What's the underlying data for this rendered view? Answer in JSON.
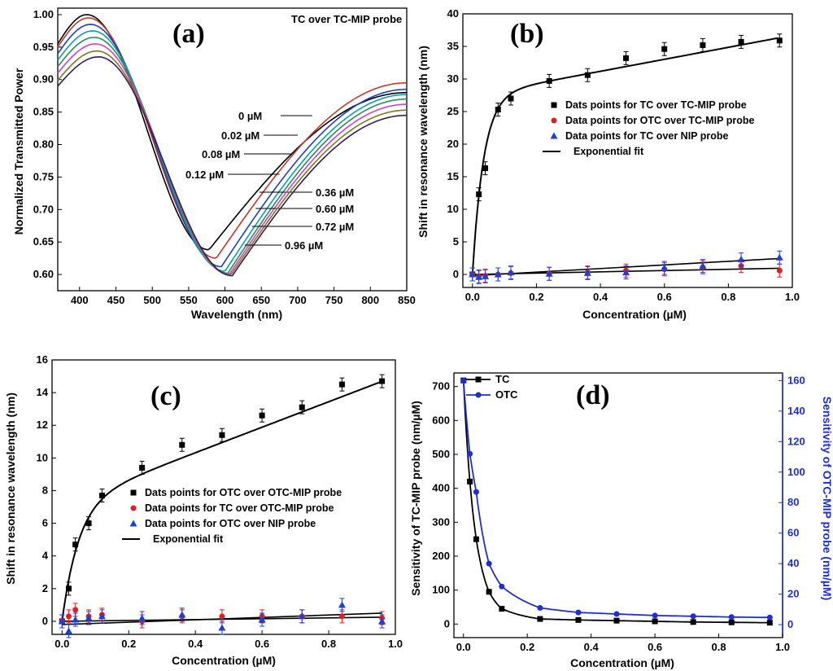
{
  "chart_data": [
    {
      "panel": "(a)",
      "type": "line",
      "title": "TC over TC-MIP probe",
      "xlabel": "Wavelength (nm)",
      "ylabel": "Normalized Transmitted Power",
      "xlim": [
        370,
        850
      ],
      "ylim": [
        0.575,
        1.01
      ],
      "xticks": [
        "400",
        "450",
        "500",
        "550",
        "600",
        "650",
        "700",
        "750",
        "800",
        "850"
      ],
      "yticks": [
        "0.60",
        "0.65",
        "0.70",
        "0.75",
        "0.80",
        "0.85",
        "0.90",
        "0.95",
        "1.00"
      ],
      "series": [
        {
          "name": "0 µM",
          "color": "#000000",
          "peak_x": 410,
          "peak_y": 1.0,
          "dip_x": 578,
          "dip_y": 0.638,
          "end_y": 0.88,
          "label_at_x": 720
        },
        {
          "name": "0.02 µM",
          "color": "#c0392b",
          "peak_x": 412,
          "peak_y": 0.995,
          "dip_x": 588,
          "dip_y": 0.625,
          "end_y": 0.895,
          "label_at_x": 700
        },
        {
          "name": "0.08 µM",
          "color": "#1f3fbf",
          "peak_x": 415,
          "peak_y": 0.985,
          "dip_x": 595,
          "dip_y": 0.612,
          "end_y": 0.885,
          "label_at_x": 690
        },
        {
          "name": "0.12 µM",
          "color": "#0aa0a8",
          "peak_x": 418,
          "peak_y": 0.975,
          "dip_x": 600,
          "dip_y": 0.605,
          "end_y": 0.877,
          "label_at_x": 675
        },
        {
          "name": "0.36 µM",
          "color": "#2e8b57",
          "peak_x": 420,
          "peak_y": 0.965,
          "dip_x": 604,
          "dip_y": 0.602,
          "end_y": 0.87,
          "label_at_x": 665
        },
        {
          "name": "0.60 µM",
          "color": "#d042c8",
          "peak_x": 422,
          "peak_y": 0.955,
          "dip_x": 606,
          "dip_y": 0.6,
          "end_y": 0.862,
          "label_at_x": 660
        },
        {
          "name": "0.72 µM",
          "color": "#7b7b20",
          "peak_x": 424,
          "peak_y": 0.944,
          "dip_x": 608,
          "dip_y": 0.599,
          "end_y": 0.853,
          "label_at_x": 655
        },
        {
          "name": "0.96 µM",
          "color": "#3a1a5c",
          "peak_x": 426,
          "peak_y": 0.935,
          "dip_x": 610,
          "dip_y": 0.598,
          "end_y": 0.845,
          "label_at_x": 645
        }
      ],
      "legend_labels": [
        "0 µM",
        "0.02 µM",
        "0.08 µM",
        "0.12 µM",
        "0.36 µM",
        "0.60 µM",
        "0.72 µM",
        "0.96 µM"
      ]
    },
    {
      "panel": "(b)",
      "type": "scatter",
      "xlabel": "Concentration (µM)",
      "ylabel": "Shift in resonance wavelength (nm)",
      "xlim": [
        -0.03,
        1.0
      ],
      "ylim": [
        -2,
        40
      ],
      "xticks": [
        "0.0",
        "0.2",
        "0.4",
        "0.6",
        "0.8",
        "1.0"
      ],
      "yticks": [
        "0",
        "5",
        "10",
        "15",
        "20",
        "25",
        "30",
        "35",
        "40"
      ],
      "x": [
        0,
        0.02,
        0.04,
        0.08,
        0.12,
        0.24,
        0.36,
        0.48,
        0.6,
        0.72,
        0.84,
        0.96
      ],
      "series": [
        {
          "name": "Dats points for TC over TC-MIP probe",
          "marker": "square",
          "color": "#000000",
          "values": [
            0,
            12.3,
            16.3,
            25.3,
            27.0,
            29.7,
            30.6,
            33.2,
            34.6,
            35.2,
            35.7,
            35.9
          ]
        },
        {
          "name": "Data points for OTC over TC-MIP probe",
          "marker": "circle",
          "color": "#e02020",
          "values": [
            0,
            -0.3,
            -0.2,
            0,
            0.2,
            0.1,
            0.3,
            0.6,
            0.8,
            1.1,
            1.3,
            0.6
          ]
        },
        {
          "name": "Data points for TC over NIP probe",
          "marker": "triangle",
          "color": "#1f3fd6",
          "values": [
            0,
            -0.4,
            -0.3,
            0,
            0.3,
            0.1,
            0.2,
            0.3,
            1.0,
            1.3,
            2.3,
            2.6
          ]
        }
      ],
      "fit_label": "Exponential fit"
    },
    {
      "panel": "(c)",
      "type": "scatter",
      "xlabel": "Concentration (µM)",
      "ylabel": "Shift in resonance wavelength (nm)",
      "xlim": [
        -0.03,
        1.0
      ],
      "ylim": [
        -0.8,
        16
      ],
      "xticks": [
        "0.0",
        "0.2",
        "0.4",
        "0.6",
        "0.8",
        "1.0"
      ],
      "yticks": [
        "0",
        "2",
        "4",
        "6",
        "8",
        "10",
        "12",
        "14",
        "16"
      ],
      "x": [
        0,
        0.02,
        0.04,
        0.08,
        0.12,
        0.24,
        0.36,
        0.48,
        0.6,
        0.72,
        0.84,
        0.96
      ],
      "series": [
        {
          "name": "Dats points for OTC over OTC-MIP probe",
          "marker": "square",
          "color": "#000000",
          "values": [
            0,
            2.0,
            4.7,
            6.0,
            7.7,
            9.4,
            10.8,
            11.4,
            12.6,
            13.1,
            14.5,
            14.7
          ]
        },
        {
          "name": "Data points for TC over OTC-MIP probe",
          "marker": "circle",
          "color": "#e02020",
          "values": [
            0,
            0.3,
            0.7,
            0.3,
            0.4,
            0.0,
            0.3,
            0.3,
            0.3,
            0.3,
            0.3,
            0.2
          ]
        },
        {
          "name": "Data points for OTC over NIP probe",
          "marker": "triangle",
          "color": "#1f3fd6",
          "values": [
            0,
            -0.6,
            0.1,
            0.2,
            0.3,
            0.2,
            0.4,
            -0.4,
            0.1,
            0.3,
            1.0,
            0.0
          ]
        }
      ],
      "fit_label": "Exponential fit"
    },
    {
      "panel": "(d)",
      "type": "line",
      "xlabel": "Concentration (µM)",
      "ylabel_left": "Sensitivity of TC-MIP probe (nm/µM)",
      "ylabel_right": "Sensitivity of OTC-MIP probe (nm/µM)",
      "xlim": [
        -0.03,
        1.0
      ],
      "ylim_left": [
        -40,
        740
      ],
      "ylim_right": [
        -8.5,
        165
      ],
      "xticks": [
        "0.0",
        "0.2",
        "0.4",
        "0.6",
        "0.8",
        "1.0"
      ],
      "yticks_left": [
        "0",
        "100",
        "200",
        "300",
        "400",
        "500",
        "600",
        "700"
      ],
      "yticks_right": [
        "0",
        "20",
        "40",
        "60",
        "80",
        "100",
        "120",
        "140",
        "160"
      ],
      "x": [
        0,
        0.02,
        0.04,
        0.08,
        0.12,
        0.24,
        0.36,
        0.48,
        0.6,
        0.72,
        0.84,
        0.96
      ],
      "series": [
        {
          "name": "TC",
          "axis": "left",
          "marker": "square",
          "color": "#000000",
          "values": [
            718,
            420,
            250,
            95,
            45,
            15,
            12,
            10,
            8,
            6,
            5,
            4
          ]
        },
        {
          "name": "OTC",
          "axis": "right",
          "marker": "circle",
          "color": "#1f2fcf",
          "values": [
            160,
            112,
            87,
            40,
            25,
            11,
            8,
            7,
            6,
            5.5,
            5,
            4.7
          ]
        }
      ]
    }
  ],
  "colors": {
    "axis": "#000000",
    "right_axis": "#1f2fcf"
  }
}
